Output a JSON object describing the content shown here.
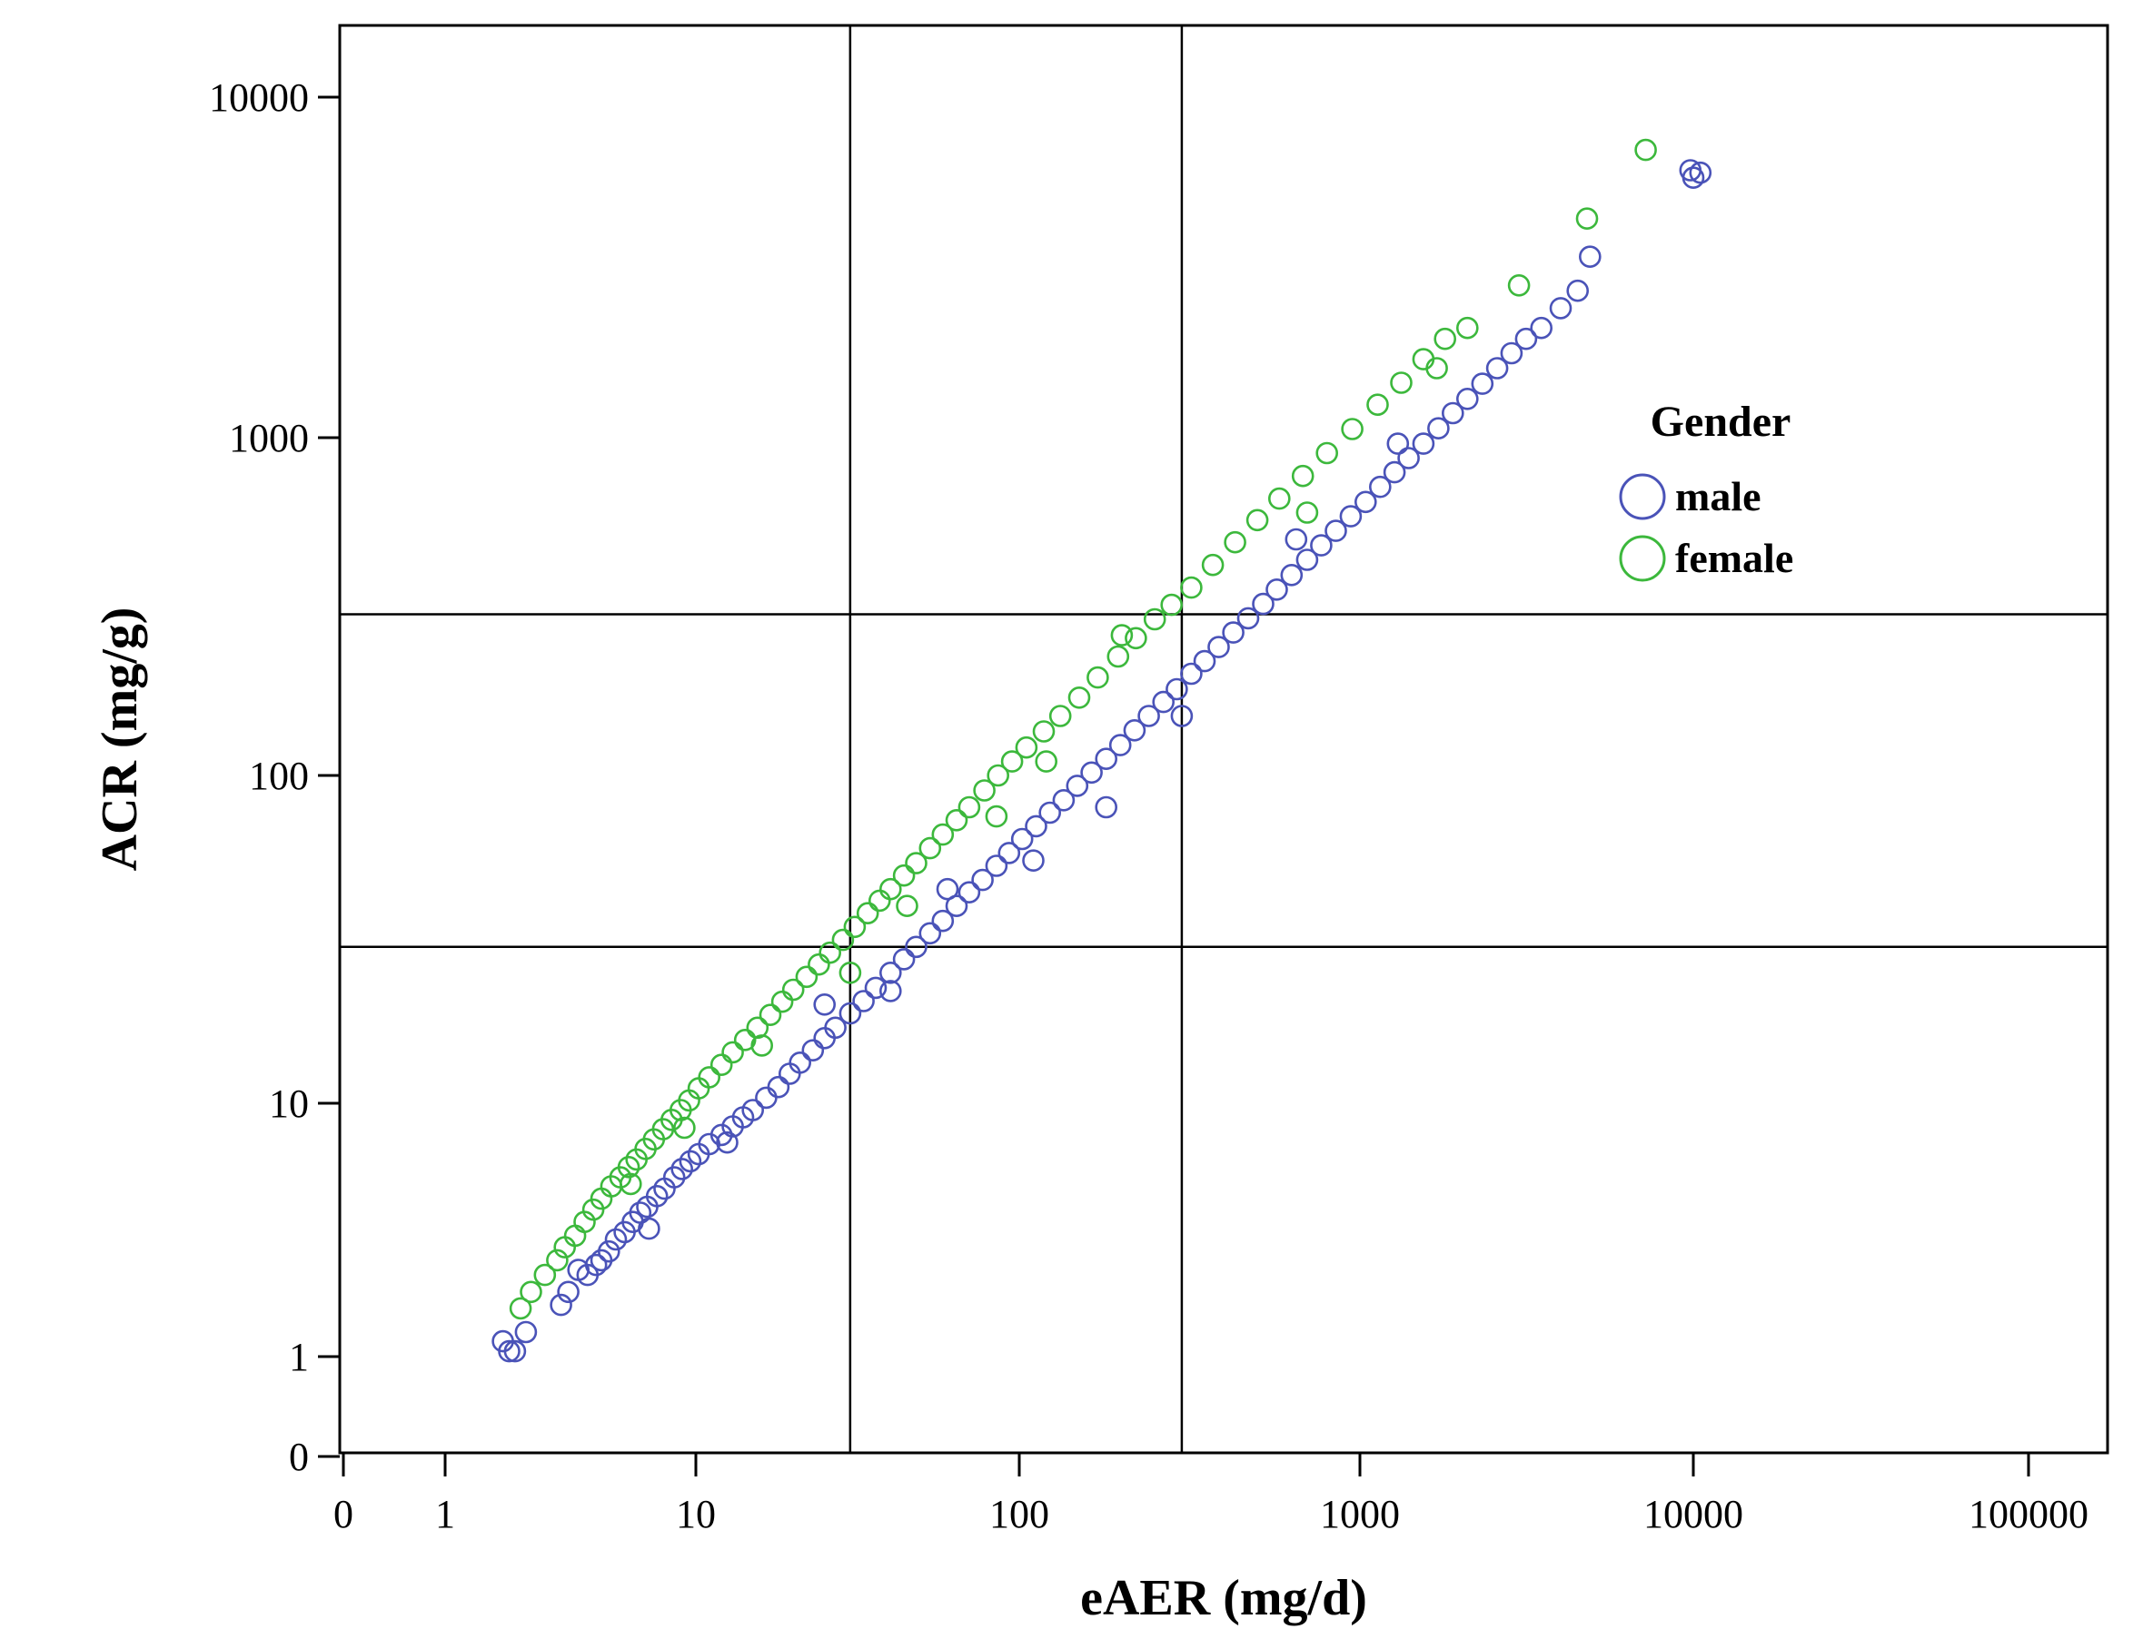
{
  "chart_data": {
    "type": "scatter",
    "title": "",
    "xlabel": "eAER (mg/d)",
    "ylabel": "ACR (mg/g)",
    "x_scale": "log",
    "y_scale": "log",
    "xlim": [
      0,
      150000
    ],
    "ylim": [
      0,
      15000
    ],
    "x_ticks": [
      "0",
      "1",
      "10",
      "100",
      "1000",
      "10000",
      "100000"
    ],
    "y_ticks": [
      "0",
      "1",
      "10",
      "100",
      "1000",
      "10000"
    ],
    "reference_lines": {
      "x": [
        30,
        300
      ],
      "y": [
        30,
        300
      ]
    },
    "grid": false,
    "legend": {
      "title": "Gender",
      "placement": "right"
    },
    "colors": {
      "male": "#4a53b8",
      "female": "#3cb83c",
      "lines": "#000000"
    },
    "series": [
      {
        "name": "male",
        "color": "#4a53b8",
        "points": [
          [
            1.7,
            1.15
          ],
          [
            1.8,
            1.05
          ],
          [
            1.9,
            1.05
          ],
          [
            2.1,
            1.25
          ],
          [
            2.9,
            1.6
          ],
          [
            3.1,
            1.8
          ],
          [
            3.4,
            2.2
          ],
          [
            3.7,
            2.1
          ],
          [
            4.0,
            2.3
          ],
          [
            4.2,
            2.4
          ],
          [
            4.5,
            2.6
          ],
          [
            4.8,
            2.9
          ],
          [
            5.2,
            3.1
          ],
          [
            5.6,
            3.4
          ],
          [
            6.0,
            3.7
          ],
          [
            6.4,
            3.9
          ],
          [
            7.0,
            4.3
          ],
          [
            7.5,
            4.6
          ],
          [
            8.2,
            5.1
          ],
          [
            8.8,
            5.5
          ],
          [
            9.5,
            5.9
          ],
          [
            10.2,
            6.3
          ],
          [
            11.0,
            6.9
          ],
          [
            12.0,
            7.5
          ],
          [
            13.0,
            8.1
          ],
          [
            14.0,
            8.8
          ],
          [
            15.0,
            9.4
          ],
          [
            16.5,
            10.4
          ],
          [
            18.0,
            11.2
          ],
          [
            19.5,
            12.3
          ],
          [
            21.0,
            13.3
          ],
          [
            23.0,
            14.5
          ],
          [
            25.0,
            15.8
          ],
          [
            27.0,
            17.0
          ],
          [
            30.0,
            18.8
          ],
          [
            33.0,
            20.5
          ],
          [
            36.0,
            22.5
          ],
          [
            40.0,
            25.0
          ],
          [
            44.0,
            27.5
          ],
          [
            48.0,
            30.0
          ],
          [
            53.0,
            33.0
          ],
          [
            58.0,
            36.0
          ],
          [
            64.0,
            40.0
          ],
          [
            70.0,
            44.0
          ],
          [
            77.0,
            48.0
          ],
          [
            85.0,
            53.0
          ],
          [
            93.0,
            58.0
          ],
          [
            102.0,
            64.0
          ],
          [
            112.0,
            70.0
          ],
          [
            123.0,
            77.0
          ],
          [
            135.0,
            84.0
          ],
          [
            148.0,
            93.0
          ],
          [
            163.0,
            102.0
          ],
          [
            180.0,
            112.0
          ],
          [
            198.0,
            123.0
          ],
          [
            218.0,
            136.0
          ],
          [
            240.0,
            150.0
          ],
          [
            265.0,
            165.0
          ],
          [
            290.0,
            180.0
          ],
          [
            320.0,
            200.0
          ],
          [
            350.0,
            218.0
          ],
          [
            385.0,
            240.0
          ],
          [
            425.0,
            265.0
          ],
          [
            470.0,
            292.0
          ],
          [
            520.0,
            322.0
          ],
          [
            570.0,
            355.0
          ],
          [
            630.0,
            392.0
          ],
          [
            700.0,
            435.0
          ],
          [
            770.0,
            480.0
          ],
          [
            850.0,
            530.0
          ],
          [
            940.0,
            585.0
          ],
          [
            1040.0,
            645.0
          ],
          [
            1150.0,
            715.0
          ],
          [
            1270.0,
            790.0
          ],
          [
            1400.0,
            870.0
          ],
          [
            1550.0,
            960.0
          ],
          [
            1720.0,
            1065.0
          ],
          [
            1900.0,
            1180.0
          ],
          [
            2100.0,
            1300.0
          ],
          [
            2330.0,
            1440.0
          ],
          [
            2580.0,
            1600.0
          ],
          [
            2850.0,
            1770.0
          ],
          [
            3150.0,
            1950.0
          ],
          [
            3500.0,
            2100.0
          ],
          [
            4000.0,
            2400.0
          ],
          [
            4500.0,
            2700.0
          ],
          [
            4900.0,
            3400.0
          ],
          [
            10000.0,
            5800.0
          ],
          [
            10500.0,
            6000.0
          ],
          [
            9800.0,
            6100.0
          ],
          [
            6.5,
            3.2
          ],
          [
            12.5,
            7.0
          ],
          [
            25.0,
            20.0
          ],
          [
            40.0,
            22.0
          ],
          [
            60.0,
            45.0
          ],
          [
            110.0,
            55.0
          ],
          [
            180.0,
            80.0
          ],
          [
            300.0,
            150.0
          ],
          [
            650.0,
            500.0
          ],
          [
            1300.0,
            960.0
          ]
        ]
      },
      {
        "name": "female",
        "color": "#3cb83c",
        "points": [
          [
            2.0,
            1.55
          ],
          [
            2.2,
            1.8
          ],
          [
            2.5,
            2.1
          ],
          [
            2.8,
            2.4
          ],
          [
            3.0,
            2.7
          ],
          [
            3.3,
            3.0
          ],
          [
            3.6,
            3.4
          ],
          [
            3.9,
            3.8
          ],
          [
            4.2,
            4.2
          ],
          [
            4.6,
            4.7
          ],
          [
            5.0,
            5.1
          ],
          [
            5.4,
            5.6
          ],
          [
            5.8,
            6.0
          ],
          [
            6.3,
            6.6
          ],
          [
            6.8,
            7.2
          ],
          [
            7.4,
            7.9
          ],
          [
            8.0,
            8.6
          ],
          [
            8.7,
            9.4
          ],
          [
            9.4,
            10.2
          ],
          [
            10.2,
            11.1
          ],
          [
            11.0,
            12.0
          ],
          [
            12.0,
            13.1
          ],
          [
            13.0,
            14.3
          ],
          [
            14.2,
            15.6
          ],
          [
            15.5,
            17.0
          ],
          [
            17.0,
            18.6
          ],
          [
            18.5,
            20.4
          ],
          [
            20.0,
            22.2
          ],
          [
            22.0,
            24.3
          ],
          [
            24.0,
            26.5
          ],
          [
            26.0,
            28.8
          ],
          [
            28.5,
            31.5
          ],
          [
            31.0,
            34.5
          ],
          [
            34.0,
            38.0
          ],
          [
            37.0,
            41.5
          ],
          [
            40.0,
            45.0
          ],
          [
            44.0,
            49.5
          ],
          [
            48.0,
            54.0
          ],
          [
            53.0,
            60.0
          ],
          [
            58.0,
            66.0
          ],
          [
            64.0,
            73.0
          ],
          [
            70.0,
            80.0
          ],
          [
            78.0,
            90.0
          ],
          [
            86.0,
            100.0
          ],
          [
            95.0,
            110.0
          ],
          [
            105.0,
            121.0
          ],
          [
            118.0,
            135.0
          ],
          [
            132.0,
            150.0
          ],
          [
            150.0,
            170.0
          ],
          [
            170.0,
            195.0
          ],
          [
            195.0,
            225.0
          ],
          [
            220.0,
            255.0
          ],
          [
            250.0,
            290.0
          ],
          [
            280.0,
            320.0
          ],
          [
            320.0,
            360.0
          ],
          [
            370.0,
            420.0
          ],
          [
            430.0,
            490.0
          ],
          [
            500.0,
            570.0
          ],
          [
            580.0,
            660.0
          ],
          [
            680.0,
            770.0
          ],
          [
            800.0,
            900.0
          ],
          [
            950.0,
            1060.0
          ],
          [
            1130.0,
            1250.0
          ],
          [
            1330.0,
            1450.0
          ],
          [
            1550.0,
            1700.0
          ],
          [
            1800.0,
            1950.0
          ],
          [
            2100.0,
            2100.0
          ],
          [
            3000.0,
            2800.0
          ],
          [
            4800.0,
            4400.0
          ],
          [
            7200.0,
            7000.0
          ],
          [
            5.5,
            4.8
          ],
          [
            9.0,
            8.0
          ],
          [
            16.0,
            15.0
          ],
          [
            30.0,
            25.0
          ],
          [
            45.0,
            40.0
          ],
          [
            85.0,
            75.0
          ],
          [
            120.0,
            110.0
          ],
          [
            200.0,
            260.0
          ],
          [
            700.0,
            600.0
          ],
          [
            1700.0,
            1600.0
          ]
        ]
      }
    ]
  }
}
